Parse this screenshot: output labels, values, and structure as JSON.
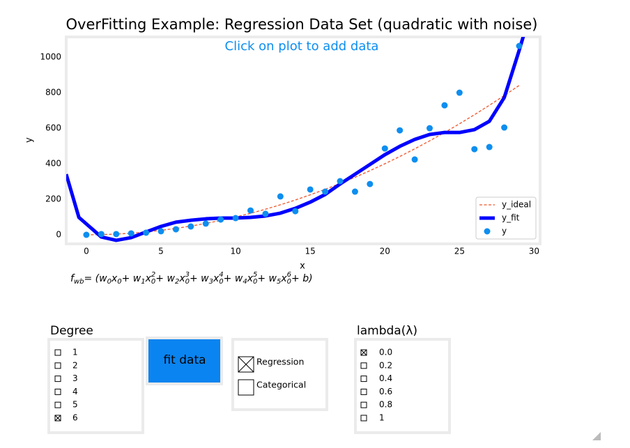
{
  "chart_data": {
    "type": "line",
    "title": "OverFitting Example: Regression Data Set (quadratic with noise)",
    "annotation": "Click on plot to add data",
    "x_label": "x",
    "y_label": "y",
    "xlim": [
      -1.35,
      30.4
    ],
    "ylim": [
      -51,
      1114
    ],
    "xticks": [
      0,
      5,
      10,
      15,
      20,
      25,
      30
    ],
    "yticks": [
      0,
      200,
      400,
      600,
      800,
      1000
    ],
    "legend": "lower right",
    "series": [
      {
        "name": "y_ideal",
        "kind": "line",
        "dashed": true,
        "width": 1.3,
        "color": "#f0562a",
        "x": [
          0,
          1,
          2,
          3,
          4,
          5,
          6,
          7,
          8,
          9,
          10,
          11,
          12,
          13,
          14,
          15,
          16,
          17,
          18,
          19,
          20,
          21,
          22,
          23,
          24,
          25,
          26,
          27,
          28,
          29
        ],
        "values": [
          0,
          1,
          4,
          9,
          16,
          25,
          36,
          49,
          64,
          81,
          100,
          121,
          144,
          169,
          196,
          225,
          256,
          289,
          324,
          361,
          400,
          441,
          484,
          529,
          576,
          625,
          676,
          729,
          784,
          841
        ]
      },
      {
        "name": "y_fit",
        "kind": "line",
        "dashed": false,
        "width": 5,
        "color": "#0000ff",
        "x": [
          -1.35,
          -0.5,
          1,
          2,
          3,
          4,
          5,
          6,
          7,
          8,
          9,
          10,
          11,
          12,
          13,
          14,
          15,
          16,
          17,
          18,
          19,
          20,
          21,
          22,
          23,
          24,
          25,
          26,
          27,
          28,
          29,
          29.5
        ],
        "values": [
          341,
          98,
          -12,
          -31,
          -16,
          16,
          47,
          71,
          82,
          90,
          94,
          94,
          98,
          106,
          122,
          149,
          184,
          227,
          286,
          341,
          396,
          451,
          498,
          537,
          565,
          576,
          576,
          592,
          639,
          773,
          1039,
          1180
        ]
      },
      {
        "name": "y",
        "kind": "scatter",
        "color": "#0d8ef0",
        "x": [
          0,
          1,
          2,
          3,
          4,
          5,
          6,
          7,
          8,
          9,
          10,
          11,
          12,
          13,
          14,
          15,
          16,
          17,
          18,
          19,
          20,
          21,
          22,
          23,
          24,
          25,
          26,
          27,
          28,
          29
        ],
        "values": [
          0,
          4,
          4,
          8,
          12,
          20,
          31,
          47,
          63,
          86,
          94,
          137,
          118,
          216,
          133,
          255,
          243,
          302,
          243,
          286,
          486,
          588,
          424,
          600,
          729,
          800,
          482,
          494,
          604,
          1063
        ]
      }
    ],
    "formula": [
      {
        "t": "f"
      },
      {
        "sub": "wb"
      },
      {
        "t": " = (w"
      },
      {
        "sub": "0"
      },
      {
        "t": "x"
      },
      {
        "sub": "0"
      },
      {
        "t": " + w"
      },
      {
        "sub": "1"
      },
      {
        "t": "x"
      },
      {
        "sub": "0"
      },
      {
        "sup": "2"
      },
      {
        "t": " + w"
      },
      {
        "sub": "2"
      },
      {
        "t": "x"
      },
      {
        "sub": "0"
      },
      {
        "sup": "3"
      },
      {
        "t": " + w"
      },
      {
        "sub": "3"
      },
      {
        "t": "x"
      },
      {
        "sub": "0"
      },
      {
        "sup": "4"
      },
      {
        "t": " + w"
      },
      {
        "sub": "4"
      },
      {
        "t": "x"
      },
      {
        "sub": "0"
      },
      {
        "sup": "5"
      },
      {
        "t": " + w"
      },
      {
        "sub": "5"
      },
      {
        "t": "x"
      },
      {
        "sub": "0"
      },
      {
        "sup": "6"
      },
      {
        "t": " + b)"
      }
    ]
  },
  "widgets": {
    "degree": {
      "title": "Degree",
      "options": [
        "1",
        "2",
        "3",
        "4",
        "5",
        "6"
      ],
      "checked": [
        false,
        false,
        false,
        false,
        false,
        true
      ]
    },
    "button": {
      "label": "fit data",
      "color": "#0a84f0"
    },
    "mode": {
      "options": [
        "Regression",
        "Categorical"
      ],
      "checked": [
        true,
        false
      ]
    },
    "lambda": {
      "title": "lambda(λ)",
      "options": [
        "0.0",
        "0.2",
        "0.4",
        "0.6",
        "0.8",
        "1"
      ],
      "checked": [
        true,
        false,
        false,
        false,
        false,
        false
      ]
    }
  }
}
